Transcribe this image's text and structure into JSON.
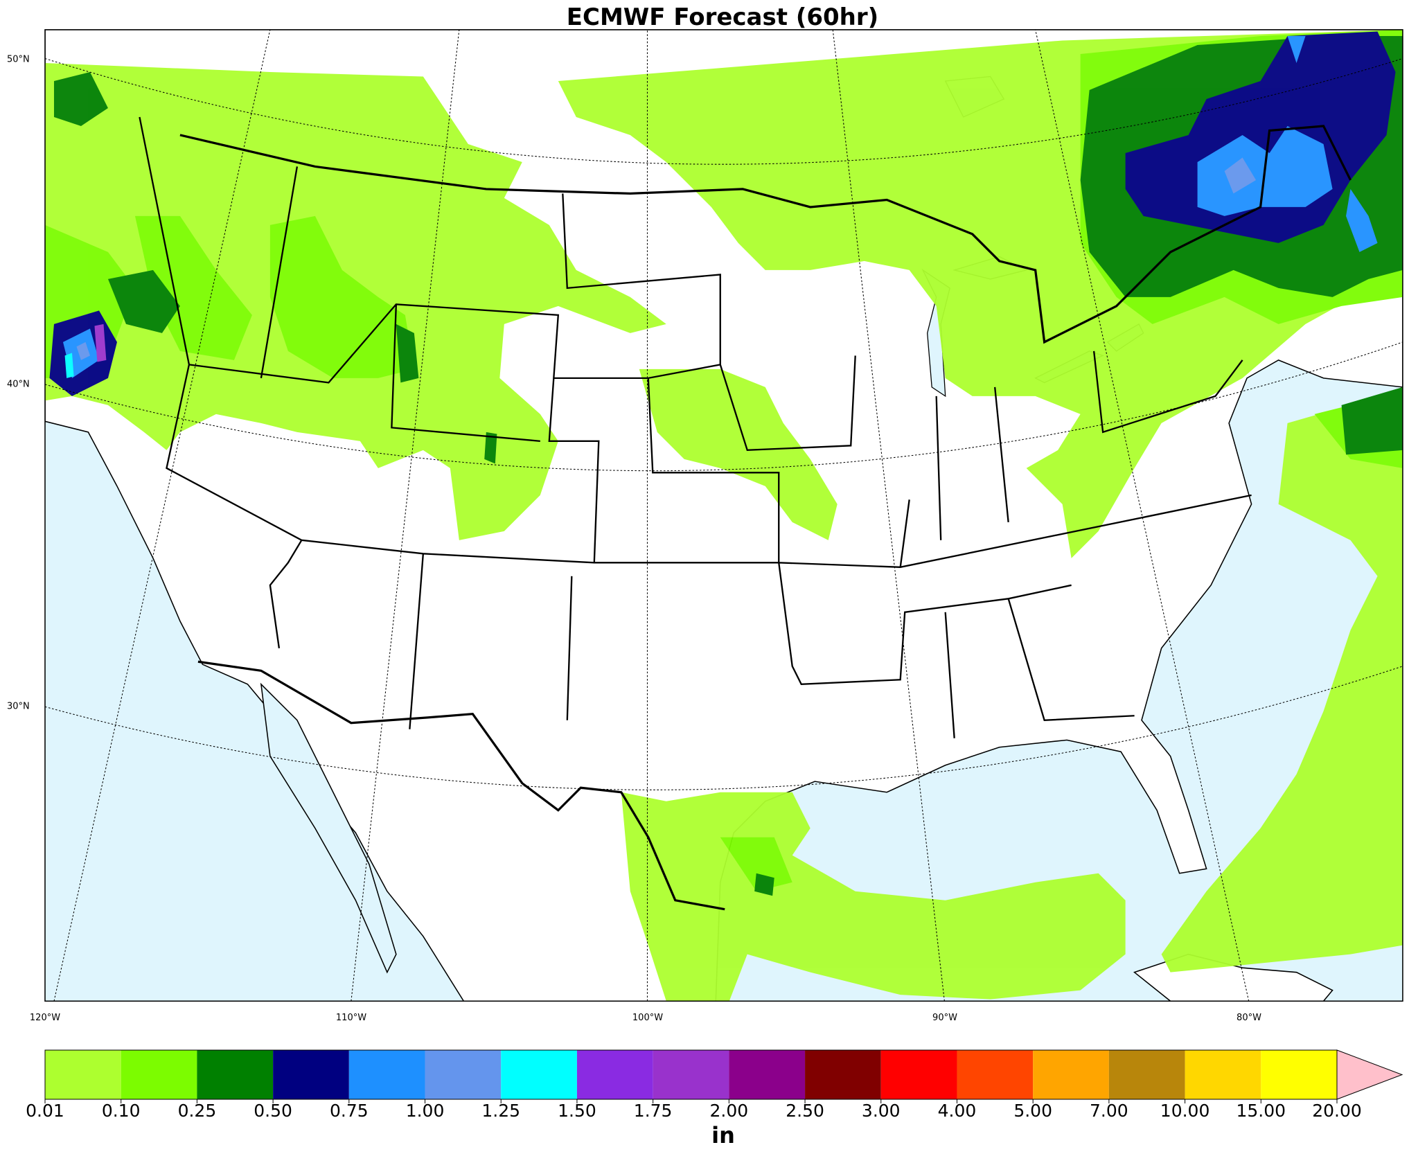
{
  "title": "ECMWF Forecast (60hr)",
  "map": {
    "lat_labels": [
      "50°N",
      "40°N",
      "30°N"
    ],
    "lon_labels": [
      "120°W",
      "110°W",
      "100°W",
      "90°W",
      "80°W"
    ]
  },
  "colorbar": {
    "ticks": [
      {
        "value": 0.01,
        "label": "0.01"
      },
      {
        "value": 0.1,
        "label": "0.10"
      },
      {
        "value": 0.25,
        "label": "0.25"
      },
      {
        "value": 0.5,
        "label": "0.50"
      },
      {
        "value": 0.75,
        "label": "0.75"
      },
      {
        "value": 1,
        "label": "1.00"
      },
      {
        "value": 1.25,
        "label": "1.25"
      },
      {
        "value": 1.5,
        "label": "1.50"
      },
      {
        "value": 1.75,
        "label": "1.75"
      },
      {
        "value": 2,
        "label": "2.00"
      },
      {
        "value": 2.5,
        "label": "2.50"
      },
      {
        "value": 3,
        "label": "3.00"
      },
      {
        "value": 4,
        "label": "4.00"
      },
      {
        "value": 5,
        "label": "5.00"
      },
      {
        "value": 7,
        "label": "7.00"
      },
      {
        "value": 10,
        "label": "10.00"
      },
      {
        "value": 15,
        "label": "15.00"
      },
      {
        "value": 20,
        "label": "20.00"
      }
    ],
    "colors": [
      "#adff2f",
      "#7cfc00",
      "#008000",
      "#000080",
      "#1e90ff",
      "#6495ed",
      "#00ffff",
      "#8a2be2",
      "#9932cc",
      "#8b008b",
      "#800000",
      "#ff0000",
      "#ff4500",
      "#ffa500",
      "#b8860b",
      "#ffd700",
      "#ffff00"
    ],
    "extend_color": "#ffc0cb",
    "unit": "in"
  }
}
